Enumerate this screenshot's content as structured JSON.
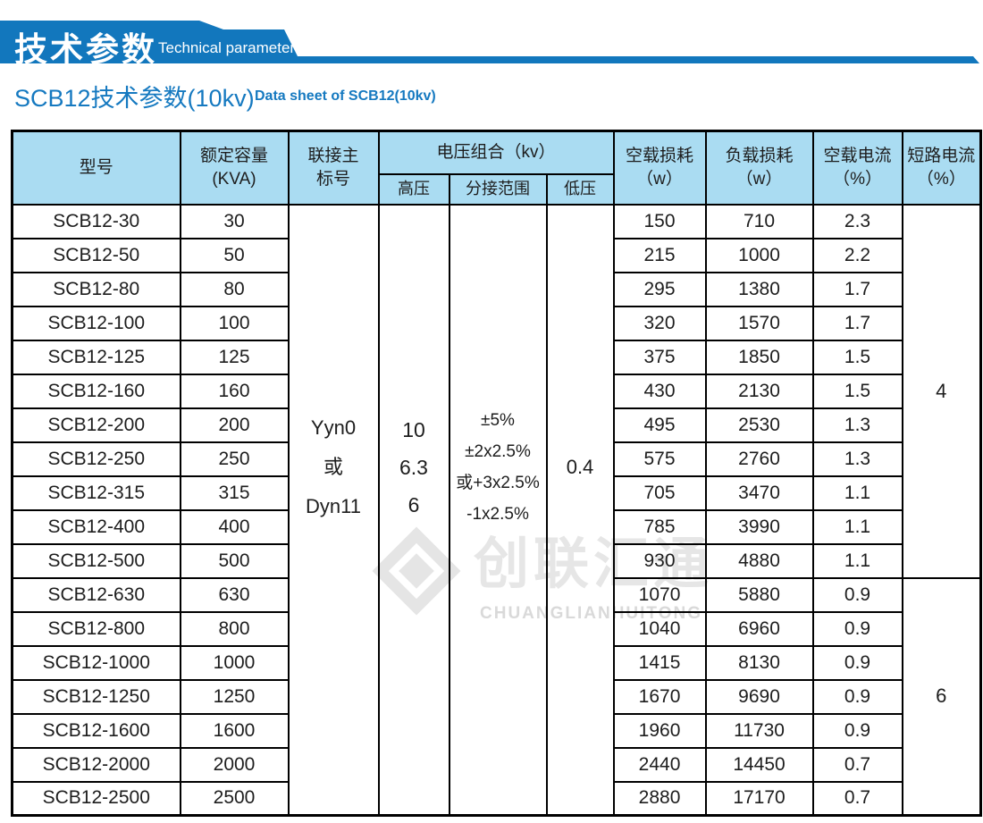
{
  "banner": {
    "title_cn": "技术参数",
    "title_en": "Technical parameter"
  },
  "page_title": {
    "cn": "SCB12技术参数(10kv)",
    "en": "Data sheet of SCB12(10kv)"
  },
  "watermark": {
    "cn": "创联汇通",
    "en": "CHUANGLIANHUITONG"
  },
  "colors": {
    "banner_blue": "#1277bd",
    "title_blue": "#1579c0",
    "header_bg": "#aadcf2",
    "table_border": "#000000",
    "body_text": "#1d1d1d",
    "watermark_gray": "#e5e5e5"
  },
  "table": {
    "headers": {
      "model": "型号",
      "capacity_l1": "额定容量",
      "capacity_l2": "(KVA)",
      "connection_l1": "联接主",
      "connection_l2": "标号",
      "voltage_group": "电压组合（kv）",
      "hv": "高压",
      "tap": "分接范围",
      "lv": "低压",
      "no_load_loss_l1": "空载损耗",
      "no_load_loss_l2": "（w）",
      "load_loss_l1": "负载损耗",
      "load_loss_l2": "（w）",
      "no_load_current_l1": "空载电流",
      "no_load_current_l2": "（%）",
      "short_circuit_l1": "短路电流",
      "short_circuit_l2": "（%）"
    },
    "merged": {
      "connection_lines": [
        "Yyn0",
        "或",
        "Dyn11"
      ],
      "hv_lines": [
        "10",
        "6.3",
        "6"
      ],
      "tap_lines": [
        "±5%",
        "±2x2.5%",
        "或+3x2.5%",
        "-1x2.5%"
      ],
      "lv_lines": [
        "0.4"
      ],
      "short_circuit_groups": [
        {
          "value": "4",
          "rows": 11
        },
        {
          "value": "6",
          "rows": 7
        }
      ]
    },
    "rows": [
      {
        "model": "SCB12-30",
        "capacity": "30",
        "no_load_loss": "150",
        "load_loss": "710",
        "no_load_current": "2.3"
      },
      {
        "model": "SCB12-50",
        "capacity": "50",
        "no_load_loss": "215",
        "load_loss": "1000",
        "no_load_current": "2.2"
      },
      {
        "model": "SCB12-80",
        "capacity": "80",
        "no_load_loss": "295",
        "load_loss": "1380",
        "no_load_current": "1.7"
      },
      {
        "model": "SCB12-100",
        "capacity": "100",
        "no_load_loss": "320",
        "load_loss": "1570",
        "no_load_current": "1.7"
      },
      {
        "model": "SCB12-125",
        "capacity": "125",
        "no_load_loss": "375",
        "load_loss": "1850",
        "no_load_current": "1.5"
      },
      {
        "model": "SCB12-160",
        "capacity": "160",
        "no_load_loss": "430",
        "load_loss": "2130",
        "no_load_current": "1.5"
      },
      {
        "model": "SCB12-200",
        "capacity": "200",
        "no_load_loss": "495",
        "load_loss": "2530",
        "no_load_current": "1.3"
      },
      {
        "model": "SCB12-250",
        "capacity": "250",
        "no_load_loss": "575",
        "load_loss": "2760",
        "no_load_current": "1.3"
      },
      {
        "model": "SCB12-315",
        "capacity": "315",
        "no_load_loss": "705",
        "load_loss": "3470",
        "no_load_current": "1.1"
      },
      {
        "model": "SCB12-400",
        "capacity": "400",
        "no_load_loss": "785",
        "load_loss": "3990",
        "no_load_current": "1.1"
      },
      {
        "model": "SCB12-500",
        "capacity": "500",
        "no_load_loss": "930",
        "load_loss": "4880",
        "no_load_current": "1.1"
      },
      {
        "model": "SCB12-630",
        "capacity": "630",
        "no_load_loss": "1070",
        "load_loss": "5880",
        "no_load_current": "0.9"
      },
      {
        "model": "SCB12-800",
        "capacity": "800",
        "no_load_loss": "1040",
        "load_loss": "6960",
        "no_load_current": "0.9"
      },
      {
        "model": "SCB12-1000",
        "capacity": "1000",
        "no_load_loss": "1415",
        "load_loss": "8130",
        "no_load_current": "0.9"
      },
      {
        "model": "SCB12-1250",
        "capacity": "1250",
        "no_load_loss": "1670",
        "load_loss": "9690",
        "no_load_current": "0.9"
      },
      {
        "model": "SCB12-1600",
        "capacity": "1600",
        "no_load_loss": "1960",
        "load_loss": "11730",
        "no_load_current": "0.9"
      },
      {
        "model": "SCB12-2000",
        "capacity": "2000",
        "no_load_loss": "2440",
        "load_loss": "14450",
        "no_load_current": "0.7"
      },
      {
        "model": "SCB12-2500",
        "capacity": "2500",
        "no_load_loss": "2880",
        "load_loss": "17170",
        "no_load_current": "0.7"
      }
    ]
  }
}
